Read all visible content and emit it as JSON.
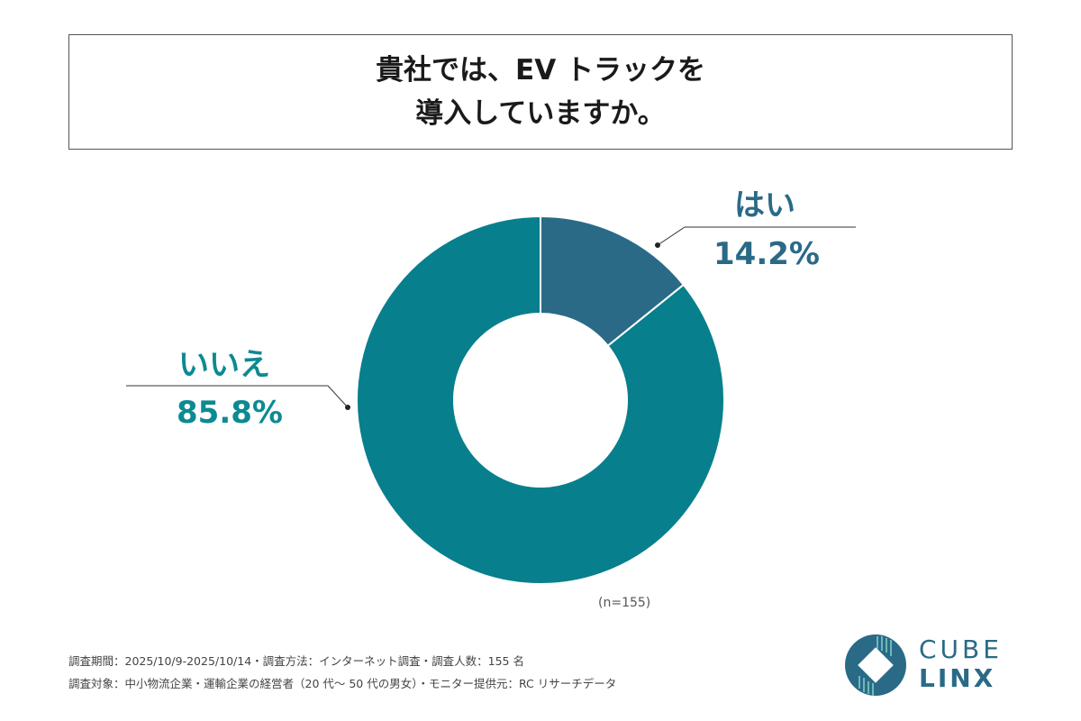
{
  "chart_data": {
    "type": "pie",
    "title": [
      "貴社では、EV トラックを",
      "導入していますか。"
    ],
    "categories": [
      "はい",
      "いいえ"
    ],
    "values": [
      14.2,
      85.8
    ],
    "labels": [
      "14.2%",
      "85.8%"
    ],
    "colors": [
      "#2a6a87",
      "#087f8c"
    ],
    "label_colors": [
      "#2a6a87",
      "#0c8a91"
    ],
    "donut": true,
    "sample": "(n=155)"
  },
  "footer": {
    "line1": "調査期間：2025/10/9-2025/10/14・調査方法：インターネット調査・調査人数：155 名",
    "line2": "調査対象：中小物流企業・運輸企業の経営者（20 代～ 50 代の男女）・モニター提供元：RC リサーチデータ"
  },
  "logo": {
    "line1": "CUBE",
    "line2": "LINX"
  }
}
